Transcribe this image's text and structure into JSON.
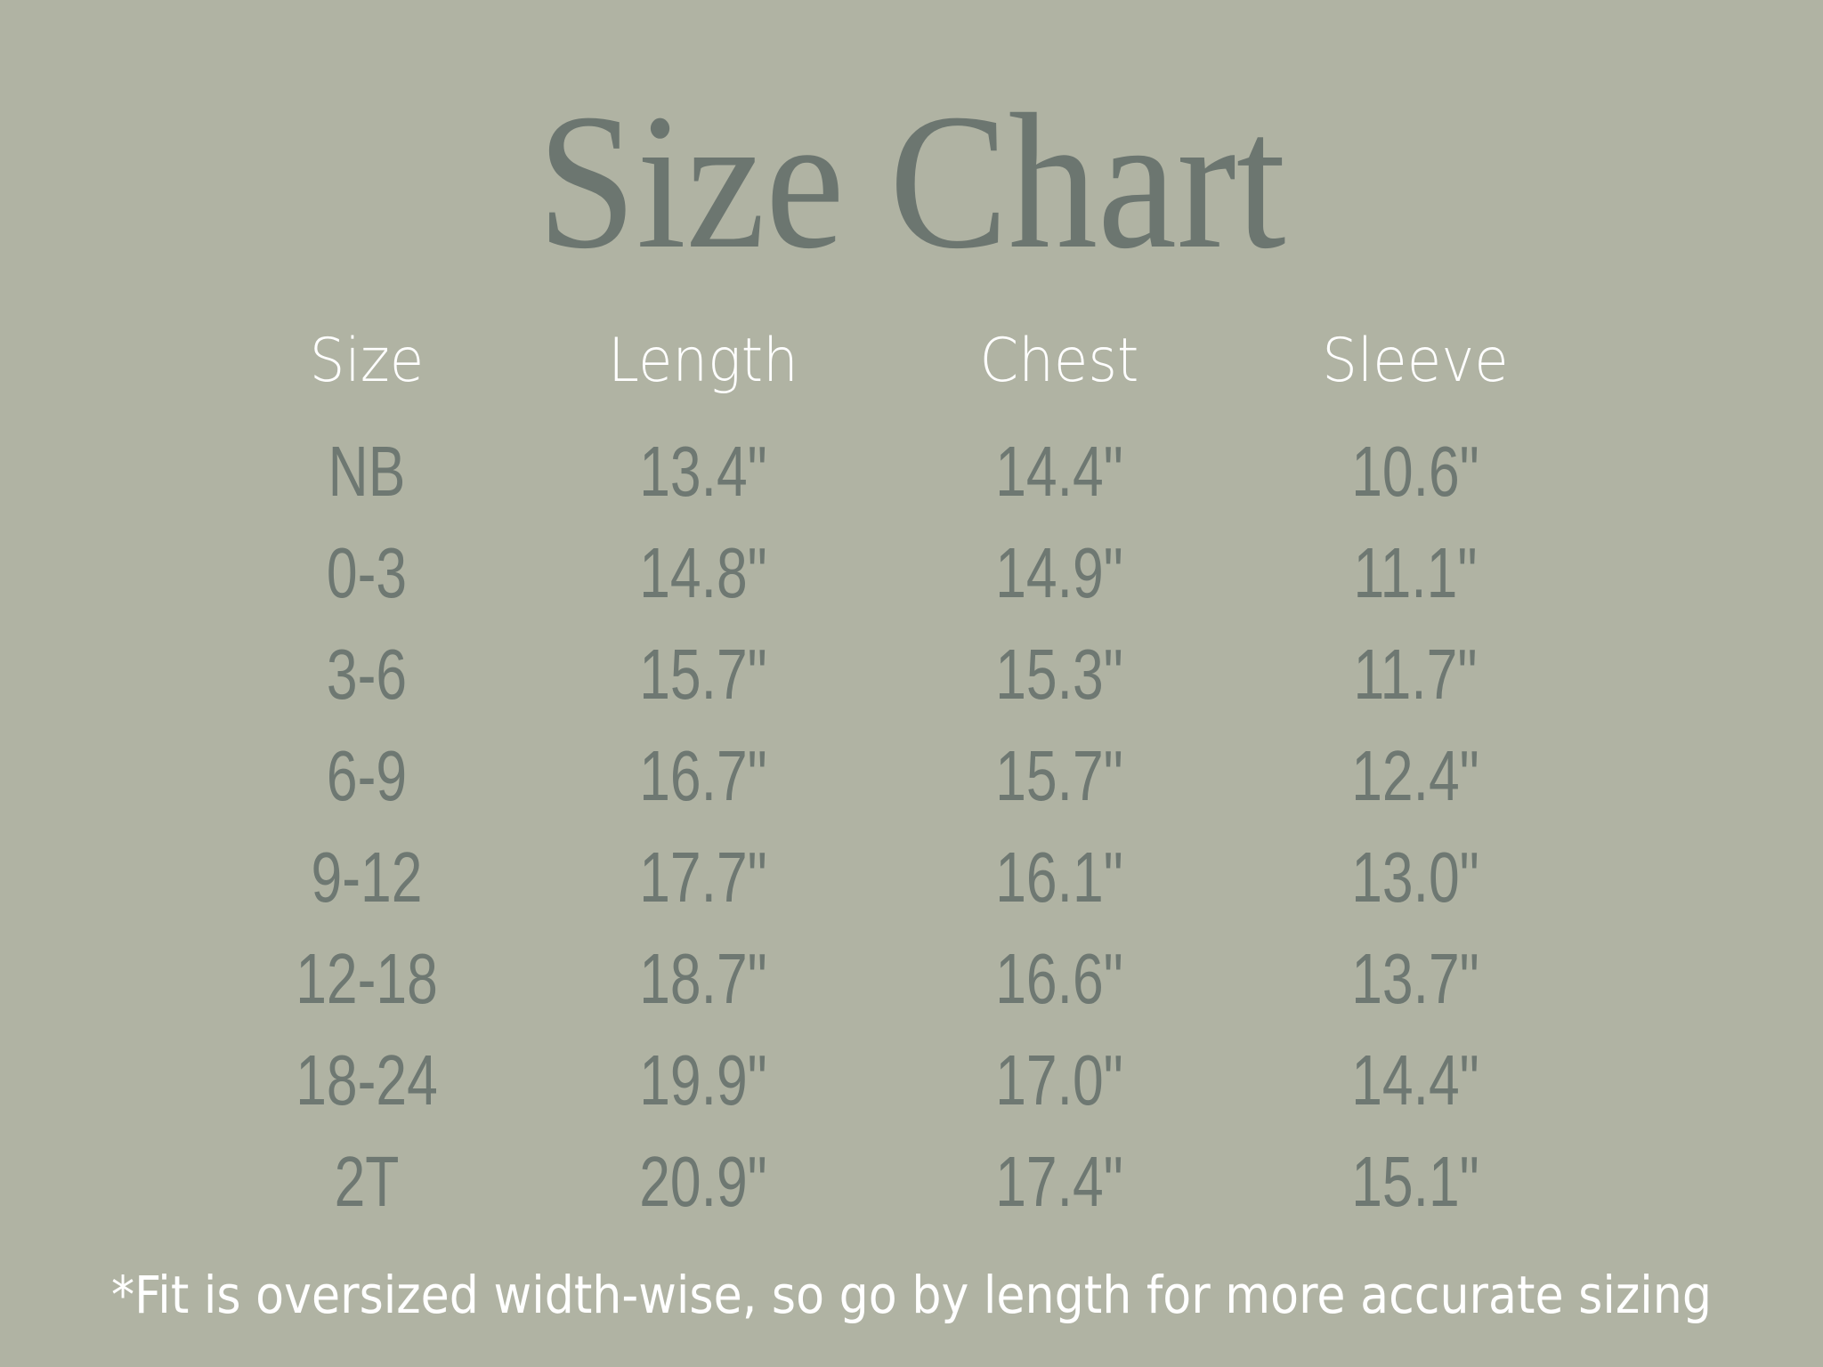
{
  "title": "Size Chart",
  "colors": {
    "background": "#b0b3a3",
    "title": "#6c7670",
    "values": "#6e7872",
    "headers": "#ffffff"
  },
  "table": {
    "headers": [
      "Size",
      "Length",
      "Chest",
      "Sleeve"
    ],
    "rows": [
      [
        "NB",
        "13.4\"",
        "14.4\"",
        "10.6\""
      ],
      [
        "0-3",
        "14.8\"",
        "14.9\"",
        "11.1\""
      ],
      [
        "3-6",
        "15.7\"",
        "15.3\"",
        "11.7\""
      ],
      [
        "6-9",
        "16.7\"",
        "15.7\"",
        "12.4\""
      ],
      [
        "9-12",
        "17.7\"",
        "16.1\"",
        "13.0\""
      ],
      [
        "12-18",
        "18.7\"",
        "16.6\"",
        "13.7\""
      ],
      [
        "18-24",
        "19.9\"",
        "17.0\"",
        "14.4\""
      ],
      [
        "2T",
        "20.9\"",
        "17.4\"",
        "15.1\""
      ]
    ]
  },
  "footnote": "*Fit is oversized width-wise, so go by length for more accurate sizing"
}
